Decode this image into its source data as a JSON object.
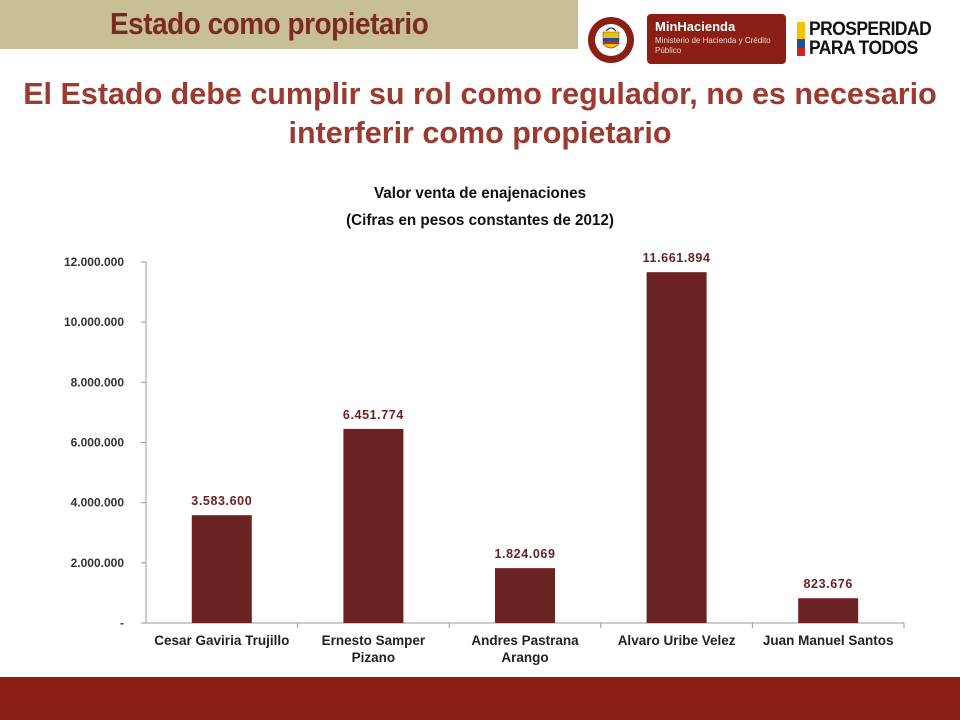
{
  "header": {
    "section_title": "Estado como propietario",
    "headline": "El Estado debe cumplir su rol como regulador, no es necesario interferir como propietario"
  },
  "logos": {
    "minhacienda_name": "MinHacienda",
    "minhacienda_sub": "Ministerio de Hacienda y Crédito Público",
    "prosperidad_line1": "PROSPERIDAD",
    "prosperidad_line2": "PARA TODOS"
  },
  "colors": {
    "bar": "#6b2222",
    "label": "#6b2222",
    "accent": "#9b3a30",
    "footer": "#8b1f14",
    "title_tab": "#c9bf97"
  },
  "chart_data": {
    "type": "bar",
    "title": "Valor venta de enajenaciones",
    "subtitle": "(Cifras en pesos constantes de 2012)",
    "categories": [
      [
        "Cesar Gaviria Trujillo"
      ],
      [
        "Ernesto Samper",
        "Pizano"
      ],
      [
        "Andres Pastrana",
        "Arango"
      ],
      [
        "Alvaro Uribe Velez"
      ],
      [
        "Juan Manuel Santos"
      ]
    ],
    "values": [
      3583600,
      6451774,
      1824069,
      11661894,
      823676
    ],
    "value_labels": [
      "3.583.600",
      "6.451.774",
      "1.824.069",
      "11.661.894",
      "823.676"
    ],
    "ylim": [
      0,
      12000000
    ],
    "yticks": [
      0,
      2000000,
      4000000,
      6000000,
      8000000,
      10000000,
      12000000
    ],
    "ytick_labels": [
      "-",
      "2.000.000",
      "4.000.000",
      "6.000.000",
      "8.000.000",
      "10.000.000",
      "12.000.000"
    ],
    "grid": false,
    "legend": "none"
  }
}
